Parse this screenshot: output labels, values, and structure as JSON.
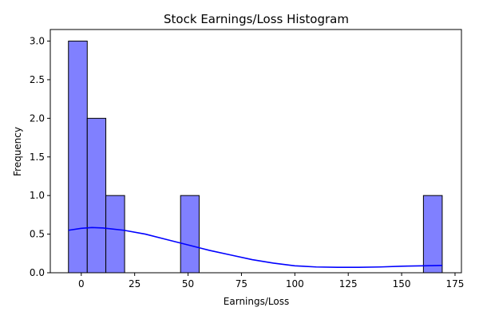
{
  "chart_data": {
    "type": "bar",
    "title": "Stock Earnings/Loss Histogram",
    "xlabel": "Earnings/Loss",
    "ylabel": "Frequency",
    "xlim": [
      -14.5,
      178
    ],
    "ylim": [
      0,
      3.15
    ],
    "xticks": [
      0,
      25,
      50,
      75,
      100,
      125,
      150,
      175
    ],
    "xtick_labels": [
      "0",
      "25",
      "50",
      "75",
      "100",
      "125",
      "150",
      "175"
    ],
    "yticks": [
      0.0,
      0.5,
      1.0,
      1.5,
      2.0,
      2.5,
      3.0
    ],
    "ytick_labels": [
      "0.0",
      "0.5",
      "1.0",
      "1.5",
      "2.0",
      "2.5",
      "3.0"
    ],
    "bins": [
      {
        "x0": -6,
        "x1": 2.8,
        "count": 3
      },
      {
        "x0": 2.8,
        "x1": 11.5,
        "count": 2
      },
      {
        "x0": 11.5,
        "x1": 20.3,
        "count": 1
      },
      {
        "x0": 46.5,
        "x1": 55.2,
        "count": 1
      },
      {
        "x0": 160.2,
        "x1": 169,
        "count": 1
      }
    ],
    "kde": {
      "x": [
        -6,
        0,
        5,
        10,
        20,
        30,
        40,
        50,
        60,
        70,
        80,
        90,
        100,
        110,
        120,
        130,
        140,
        150,
        160,
        169
      ],
      "y": [
        0.55,
        0.575,
        0.585,
        0.58,
        0.55,
        0.5,
        0.43,
        0.36,
        0.29,
        0.23,
        0.17,
        0.125,
        0.09,
        0.075,
        0.07,
        0.07,
        0.075,
        0.085,
        0.09,
        0.095
      ]
    },
    "colors": {
      "bar_fill": "#8080ff",
      "bar_edge": "#000000",
      "kde_line": "#0000ff"
    },
    "grid": false,
    "legend": "none"
  }
}
